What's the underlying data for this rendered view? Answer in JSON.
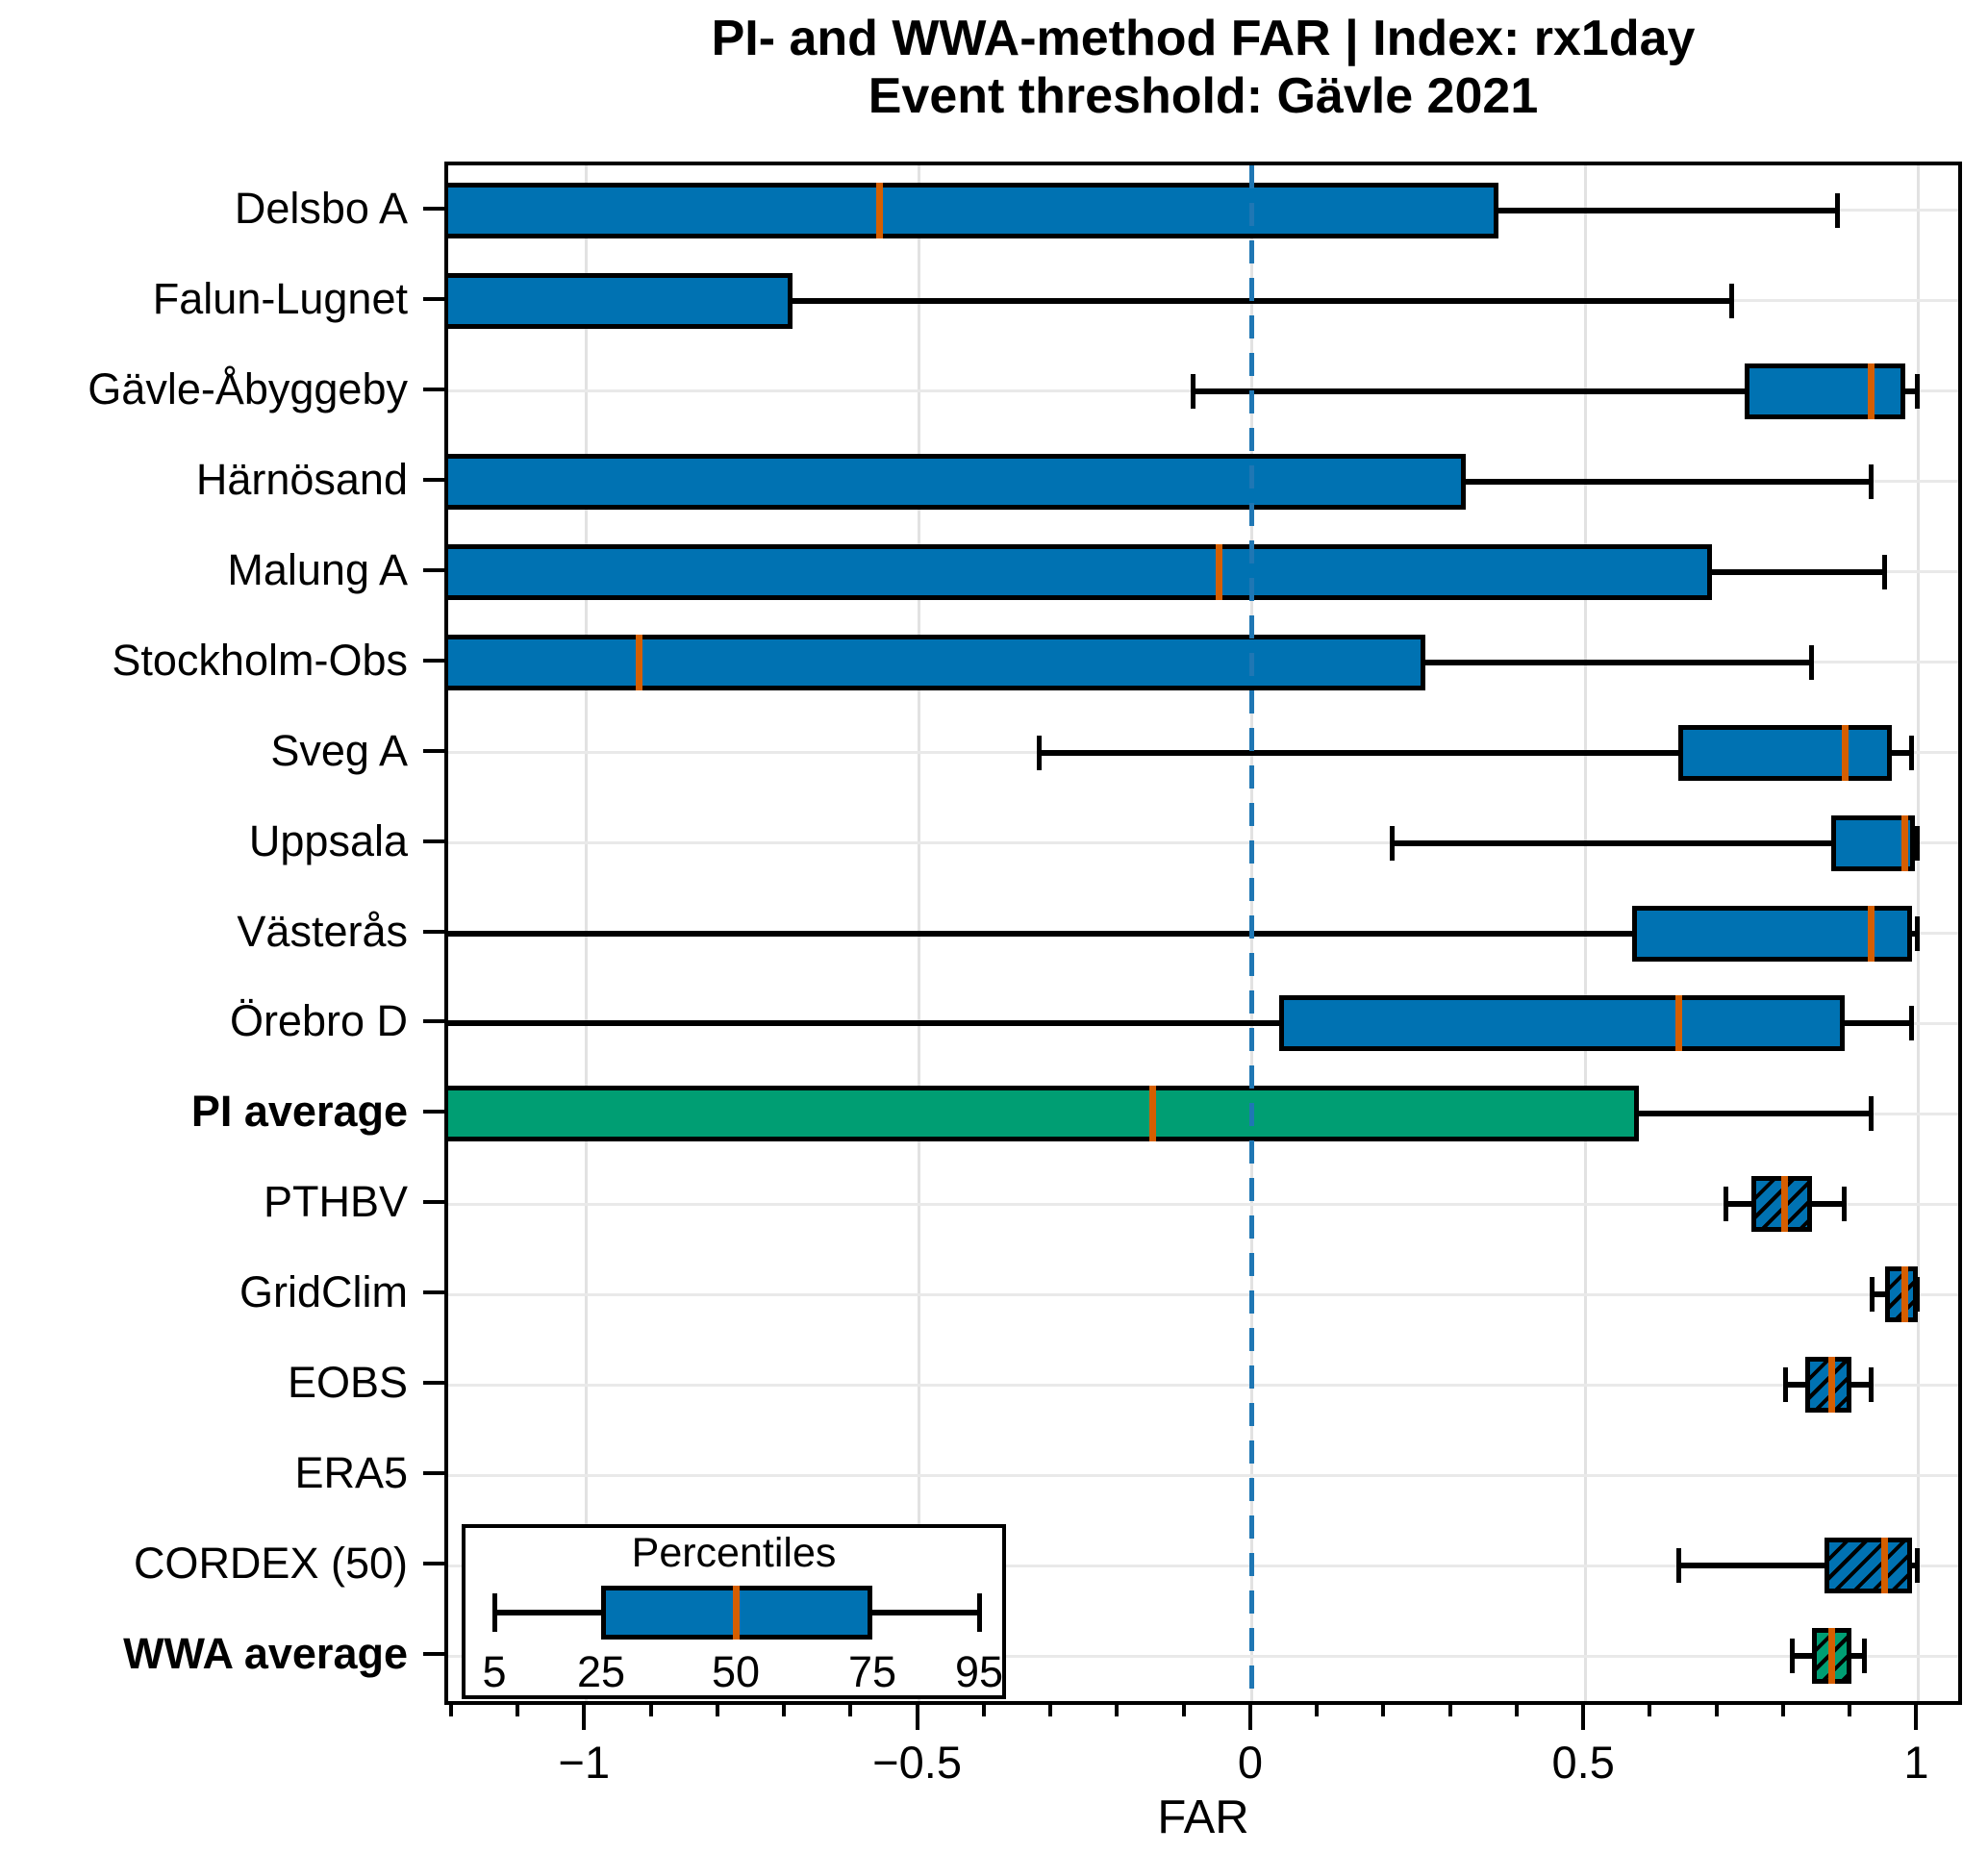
{
  "title": {
    "line1": "PI- and WWA-method FAR | Index: rx1day",
    "line2": "Event threshold: Gävle 2021"
  },
  "chart_data": {
    "type": "boxplot",
    "orientation": "horizontal",
    "title": "PI- and WWA-method FAR | Index: rx1day — Event threshold: Gävle 2021",
    "xlabel": "FAR",
    "xlim": [
      -1.207,
      1.06
    ],
    "x_major_ticks": [
      {
        "value": -1,
        "label": "−1"
      },
      {
        "value": -0.5,
        "label": "−0.5"
      },
      {
        "value": 0,
        "label": "0"
      },
      {
        "value": 0.5,
        "label": "0.5"
      },
      {
        "value": 1,
        "label": "1"
      }
    ],
    "x_minor_tick_step": 0.1,
    "grid": true,
    "zero_line": {
      "value": 0,
      "style": "dashed",
      "color": "#1f77b4"
    },
    "colors": {
      "pi_box_fill": "#0072b2",
      "average_box_fill": "#009e73",
      "median_line": "#d55e00",
      "whisker": "#000000",
      "grid_line": "#e5e5e5"
    },
    "percentile_convention": {
      "whisker_low": 5,
      "box_low": 25,
      "median": 50,
      "box_high": 75,
      "whisker_high": 95
    },
    "rows": [
      {
        "label": "Delsbo A",
        "bold": false,
        "fill": "blue",
        "hatched": false,
        "clip": "box",
        "whisker_low": null,
        "q1": null,
        "median": -0.56,
        "q3": 0.37,
        "whisker_high": 0.88
      },
      {
        "label": "Falun-Lugnet",
        "bold": false,
        "fill": "blue",
        "hatched": false,
        "clip": "box",
        "whisker_low": null,
        "q1": null,
        "median": null,
        "q3": -0.69,
        "whisker_high": 0.72
      },
      {
        "label": "Gävle-Åbyggeby",
        "bold": false,
        "fill": "blue",
        "hatched": false,
        "clip": null,
        "whisker_low": -0.09,
        "q1": 0.74,
        "median": 0.93,
        "q3": 0.98,
        "whisker_high": 1.0
      },
      {
        "label": "Härnösand",
        "bold": false,
        "fill": "blue",
        "hatched": false,
        "clip": "box",
        "whisker_low": null,
        "q1": null,
        "median": null,
        "q3": 0.32,
        "whisker_high": 0.93
      },
      {
        "label": "Malung A",
        "bold": false,
        "fill": "blue",
        "hatched": false,
        "clip": "box",
        "whisker_low": null,
        "q1": null,
        "median": -0.05,
        "q3": 0.69,
        "whisker_high": 0.95
      },
      {
        "label": "Stockholm-Obs",
        "bold": false,
        "fill": "blue",
        "hatched": false,
        "clip": "box",
        "whisker_low": null,
        "q1": null,
        "median": -0.92,
        "q3": 0.26,
        "whisker_high": 0.84
      },
      {
        "label": "Sveg A",
        "bold": false,
        "fill": "blue",
        "hatched": false,
        "clip": null,
        "whisker_low": -0.32,
        "q1": 0.64,
        "median": 0.89,
        "q3": 0.96,
        "whisker_high": 0.99
      },
      {
        "label": "Uppsala",
        "bold": false,
        "fill": "blue",
        "hatched": false,
        "clip": null,
        "whisker_low": 0.21,
        "q1": 0.87,
        "median": 0.98,
        "q3": 0.995,
        "whisker_high": 1.0
      },
      {
        "label": "Västerås",
        "bold": false,
        "fill": "blue",
        "hatched": false,
        "clip": "whisker",
        "whisker_low": null,
        "q1": 0.57,
        "median": 0.93,
        "q3": 0.99,
        "whisker_high": 1.0
      },
      {
        "label": "Örebro D",
        "bold": false,
        "fill": "blue",
        "hatched": false,
        "clip": "whisker",
        "whisker_low": null,
        "q1": 0.04,
        "median": 0.64,
        "q3": 0.89,
        "whisker_high": 0.99
      },
      {
        "label": "PI average",
        "bold": true,
        "fill": "green",
        "hatched": false,
        "clip": "box",
        "whisker_low": null,
        "q1": null,
        "median": -0.15,
        "q3": 0.58,
        "whisker_high": 0.93
      },
      {
        "label": "PTHBV",
        "bold": false,
        "fill": "blue",
        "hatched": true,
        "clip": null,
        "whisker_low": 0.71,
        "q1": 0.75,
        "median": 0.8,
        "q3": 0.84,
        "whisker_high": 0.89
      },
      {
        "label": "GridClim",
        "bold": false,
        "fill": "blue",
        "hatched": true,
        "clip": null,
        "whisker_low": 0.93,
        "q1": 0.95,
        "median": 0.98,
        "q3": 1.0,
        "whisker_high": 1.0
      },
      {
        "label": "EOBS",
        "bold": false,
        "fill": "blue",
        "hatched": true,
        "clip": null,
        "whisker_low": 0.8,
        "q1": 0.83,
        "median": 0.87,
        "q3": 0.9,
        "whisker_high": 0.93
      },
      {
        "label": "ERA5",
        "bold": false,
        "fill": "blue",
        "hatched": true,
        "clip": null,
        "whisker_low": null,
        "q1": null,
        "median": null,
        "q3": null,
        "whisker_high": null
      },
      {
        "label": "CORDEX (50)",
        "bold": false,
        "fill": "blue",
        "hatched": true,
        "clip": null,
        "whisker_low": 0.64,
        "q1": 0.86,
        "median": 0.95,
        "q3": 0.99,
        "whisker_high": 1.0
      },
      {
        "label": "WWA average",
        "bold": true,
        "fill": "green",
        "hatched": true,
        "clip": null,
        "whisker_low": 0.81,
        "q1": 0.84,
        "median": 0.87,
        "q3": 0.9,
        "whisker_high": 0.92
      }
    ],
    "legend": {
      "title": "Percentiles",
      "labels": [
        "5",
        "25",
        "50",
        "75",
        "95"
      ]
    }
  }
}
